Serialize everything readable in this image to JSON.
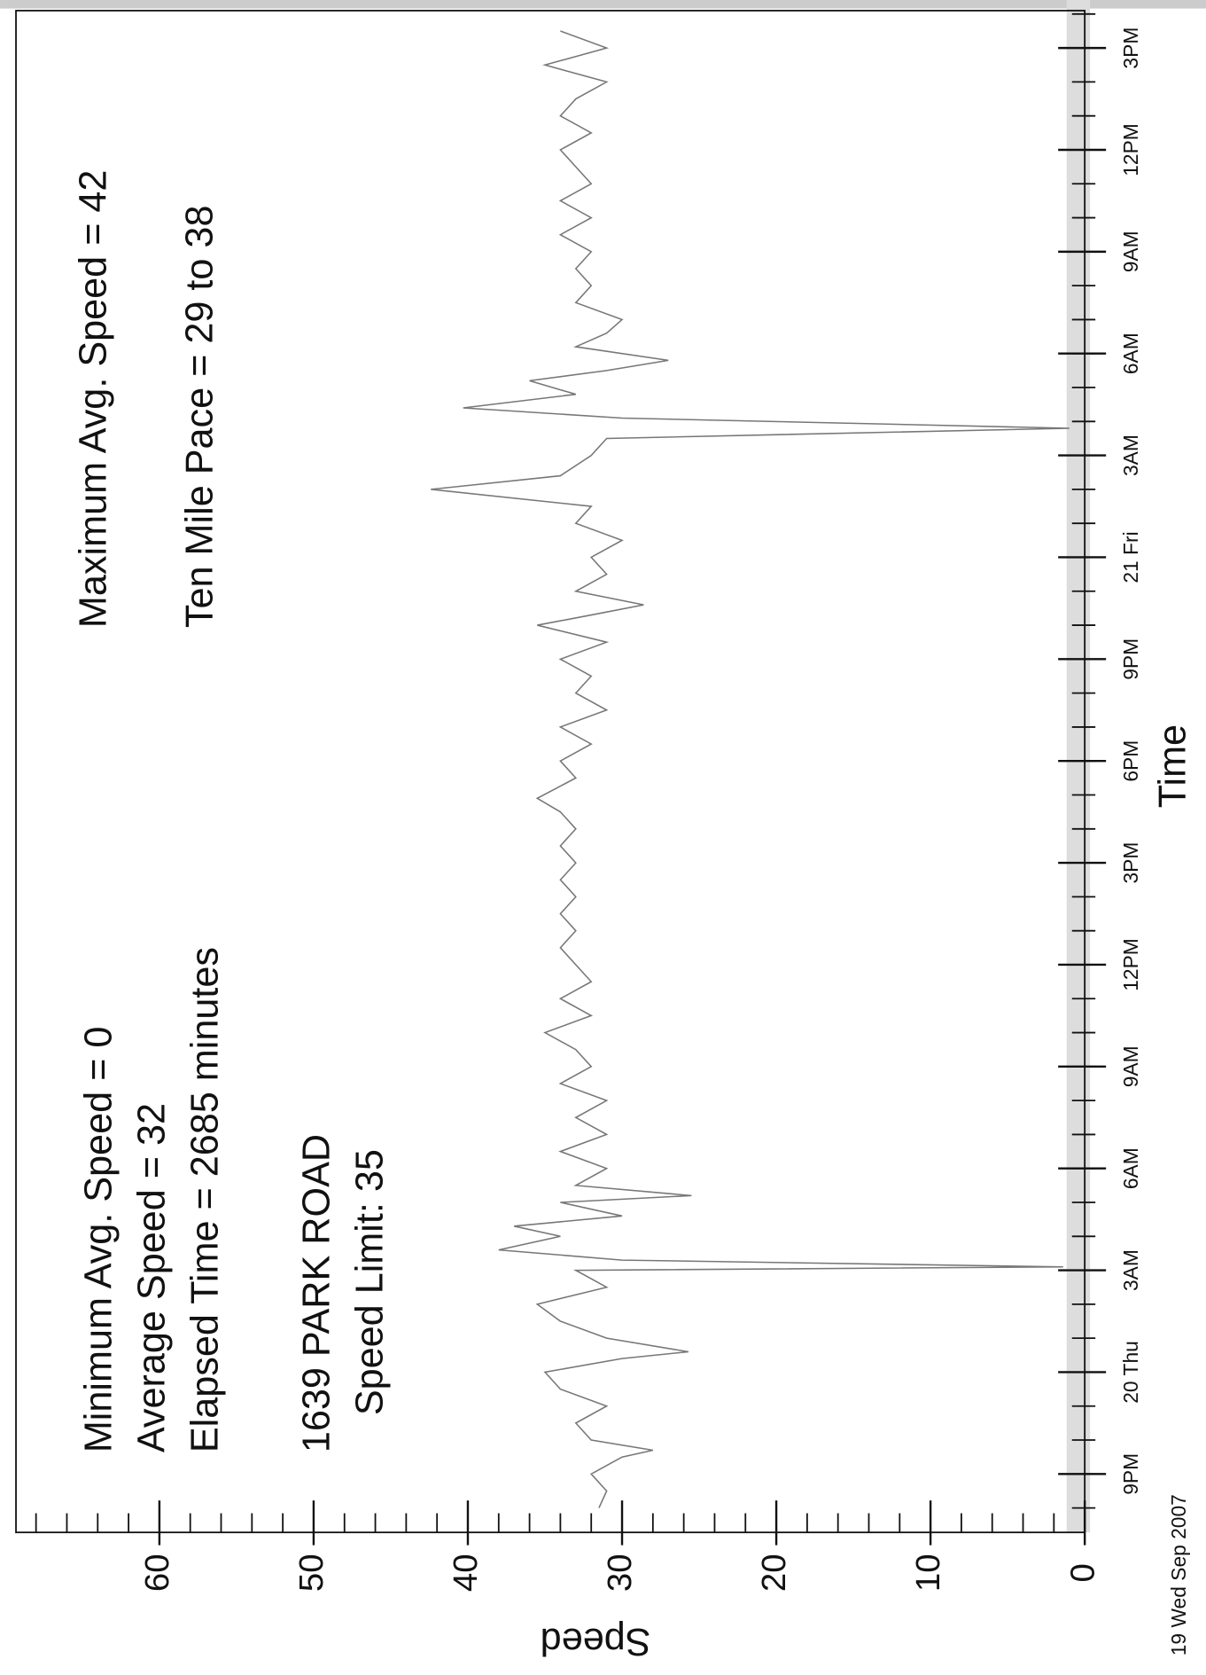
{
  "chart_data": {
    "type": "line",
    "ylabel": "Speed",
    "xlabel": "Time",
    "start_label": "19 Wed Sep 2007",
    "annotations": [
      "Minimum Avg. Speed = 0",
      "Average Speed = 32",
      "Elapsed Time = 2685 minutes",
      "1639 PARK ROAD",
      "Speed Limit: 35",
      "Maximum Avg. Speed = 42",
      "Ten Mile Pace = 29 to 38"
    ],
    "color": "#777777",
    "ylim": [
      0,
      69.3
    ],
    "yticks": [
      0,
      10,
      20,
      30,
      40,
      50,
      60
    ],
    "yticks_minor": [
      0,
      2,
      4,
      6,
      8,
      10,
      12,
      14,
      16,
      18,
      20,
      22,
      24,
      26,
      28,
      30,
      32,
      34,
      36,
      38,
      40,
      42,
      44,
      46,
      48,
      50,
      52,
      54,
      56,
      58,
      60,
      62,
      64,
      66,
      68
    ],
    "xlim": [
      19.28,
      64.1
    ],
    "xticks": [
      {
        "value": 21,
        "label": "9PM"
      },
      {
        "value": 24,
        "label": "20 Thu"
      },
      {
        "value": 27,
        "label": "3AM"
      },
      {
        "value": 30,
        "label": "6AM"
      },
      {
        "value": 33,
        "label": "9AM"
      },
      {
        "value": 36,
        "label": "12PM"
      },
      {
        "value": 39,
        "label": "3PM"
      },
      {
        "value": 42,
        "label": "6PM"
      },
      {
        "value": 45,
        "label": "9PM"
      },
      {
        "value": 48,
        "label": "21 Fri"
      },
      {
        "value": 51,
        "label": "3AM"
      },
      {
        "value": 54,
        "label": "6AM"
      },
      {
        "value": 57,
        "label": "9AM"
      },
      {
        "value": 60,
        "label": "12PM"
      },
      {
        "value": 63,
        "label": "3PM"
      }
    ],
    "xticks_minor": [
      20,
      21,
      22,
      23,
      24,
      25,
      26,
      27,
      28,
      29,
      30,
      31,
      32,
      33,
      34,
      35,
      36,
      37,
      38,
      39,
      40,
      41,
      42,
      43,
      44,
      45,
      46,
      47,
      48,
      49,
      50,
      51,
      52,
      53,
      54,
      55,
      56,
      57,
      58,
      59,
      60,
      61,
      62,
      63,
      64
    ],
    "x": [
      20.0,
      20.5,
      21.0,
      21.5,
      21.7,
      22.0,
      22.5,
      23.0,
      23.5,
      24.0,
      24.4,
      24.6,
      25.0,
      25.5,
      26.0,
      26.5,
      27.0,
      27.1,
      27.3,
      27.6,
      28.0,
      28.3,
      28.6,
      29.0,
      29.2,
      29.5,
      30.0,
      30.5,
      31.0,
      31.5,
      32.0,
      32.5,
      33.0,
      33.5,
      34.0,
      34.5,
      35.0,
      35.5,
      36.0,
      36.5,
      37.0,
      37.5,
      38.0,
      38.5,
      39.0,
      39.5,
      40.0,
      40.5,
      40.9,
      41.5,
      42.0,
      42.5,
      43.0,
      43.5,
      44.0,
      44.5,
      45.0,
      45.5,
      46.0,
      46.3,
      46.6,
      47.0,
      47.5,
      48.0,
      48.5,
      49.0,
      49.5,
      50.0,
      50.4,
      51.0,
      51.5,
      51.8,
      52.1,
      52.4,
      52.8,
      53.2,
      53.5,
      53.8,
      54.2,
      54.6,
      55.0,
      55.5,
      56.0,
      56.5,
      57.0,
      57.5,
      58.0,
      58.5,
      59.0,
      59.5,
      60.0,
      60.5,
      61.0,
      61.5,
      62.0,
      62.5,
      63.0,
      63.5
    ],
    "values": [
      31.5,
      31,
      32,
      30,
      28,
      32,
      33,
      31,
      34,
      35,
      30,
      25.7,
      31,
      34,
      35.5,
      31,
      33,
      1.4,
      30,
      38,
      34,
      37,
      30,
      34,
      25.5,
      33,
      31,
      34,
      31,
      33,
      31,
      34,
      32,
      33,
      35,
      32,
      34,
      32,
      33,
      34,
      33,
      34,
      33,
      34,
      33,
      34,
      33,
      34,
      35.5,
      33,
      34,
      32,
      34,
      31,
      33,
      32,
      34,
      31,
      35.5,
      32,
      28.6,
      33,
      31,
      32,
      30,
      33,
      32,
      42.4,
      34,
      32,
      31,
      1,
      30,
      40.3,
      33,
      36,
      31,
      27,
      33,
      31,
      30,
      33,
      32,
      33,
      32,
      34,
      32,
      34,
      32,
      33,
      34,
      32,
      34,
      33,
      31,
      35,
      31,
      34
    ]
  }
}
